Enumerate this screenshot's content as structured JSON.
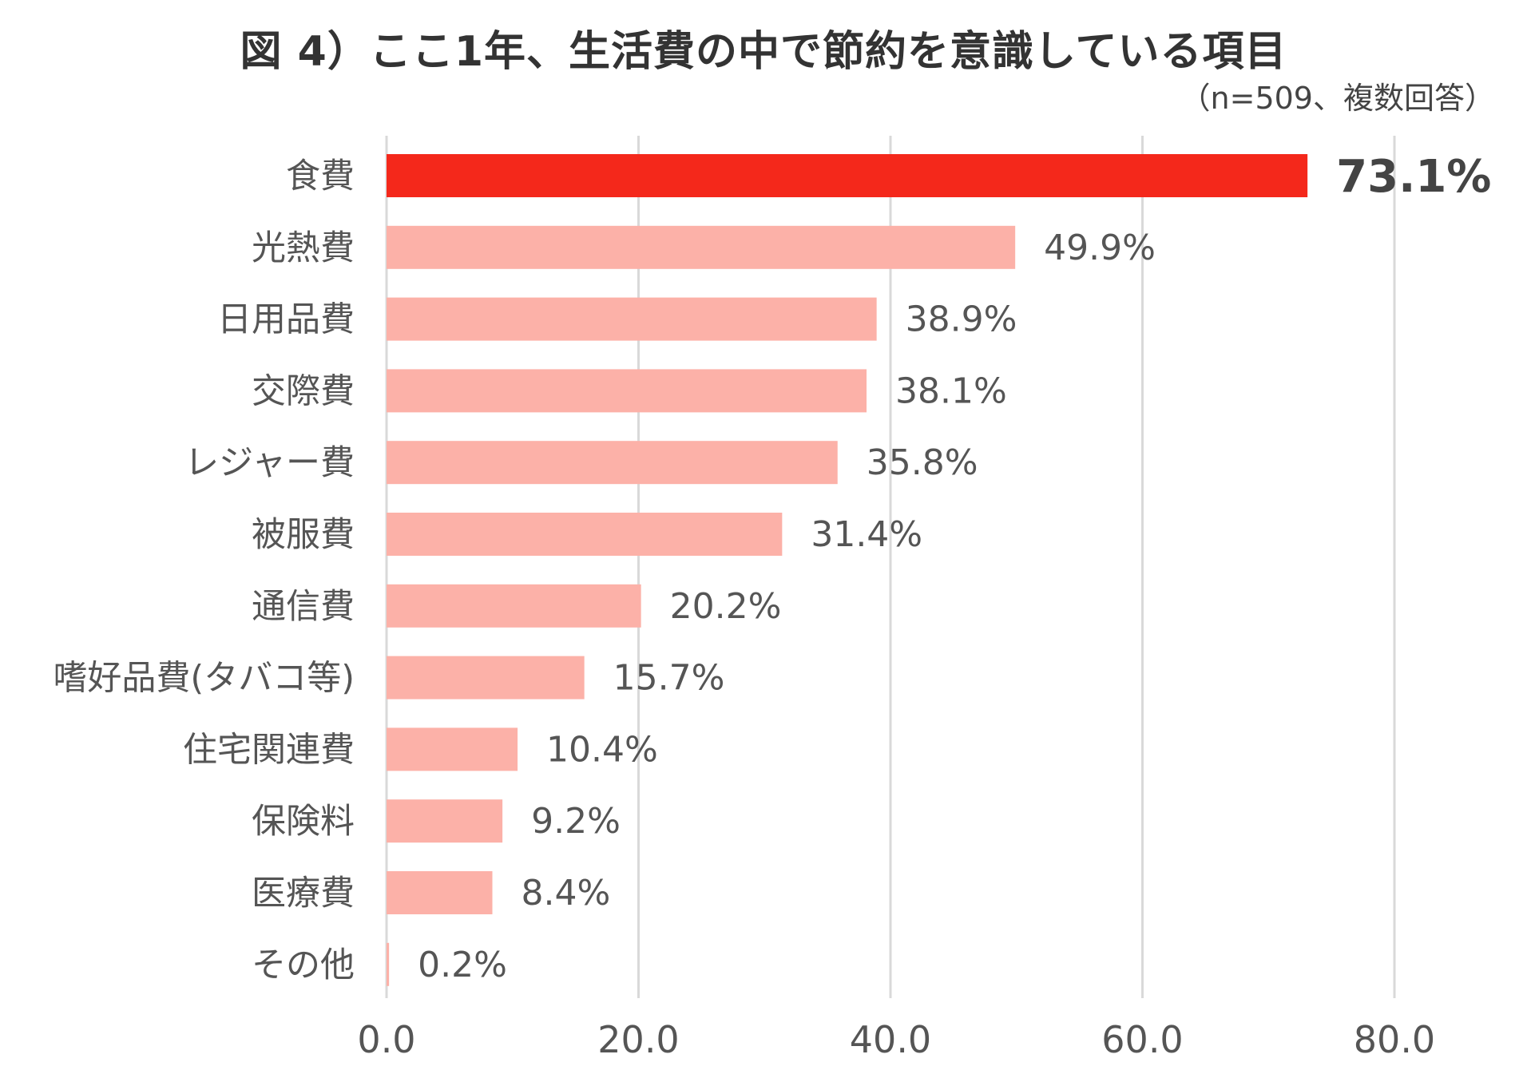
{
  "chart_data": {
    "type": "bar",
    "orientation": "horizontal",
    "title": "図 4）ここ1年、生活費の中で節約を意識している項目",
    "subtitle": "（n=509、複数回答）",
    "categories": [
      "食費",
      "光熱費",
      "日用品費",
      "交際費",
      "レジャー費",
      "被服費",
      "通信費",
      "嗜好品費(タバコ等)",
      "住宅関連費",
      "保険料",
      "医療費",
      "その他"
    ],
    "values": [
      73.1,
      49.9,
      38.9,
      38.1,
      35.8,
      31.4,
      20.2,
      15.7,
      10.4,
      9.2,
      8.4,
      0.2
    ],
    "value_labels": [
      "73.1%",
      "49.9%",
      "38.9%",
      "38.1%",
      "35.8%",
      "31.4%",
      "20.2%",
      "15.7%",
      "10.4%",
      "9.2%",
      "8.4%",
      "0.2%"
    ],
    "xlim": [
      0,
      80
    ],
    "x_ticks": [
      0,
      20,
      40,
      60,
      80
    ],
    "x_tick_labels": [
      "0.0",
      "20.0",
      "40.0",
      "60.0",
      "80.0"
    ],
    "grid": true,
    "highlight_index": 0,
    "colors": {
      "highlight": "#f4281b",
      "bar": "#fcb1a8",
      "grid": "#d9d9d9",
      "label": "#555555",
      "highlight_label": "#444444"
    }
  }
}
